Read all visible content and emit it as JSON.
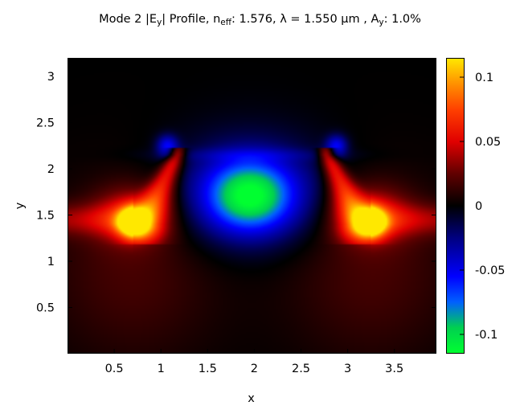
{
  "title": {
    "t1": "Mode 2 |E",
    "t2": "y",
    "t3": "| Profile, n",
    "t4": "eff",
    "t5": ": 1.576, λ = 1.550 µm , A",
    "t6": "y",
    "t7": ": 1.0%"
  },
  "chart_data": {
    "type": "heatmap",
    "title": "Mode 2 |Ey| Profile, neff: 1.576, λ = 1.550 µm , Ay: 1.0%",
    "xlabel": "x",
    "ylabel": "y",
    "xlim": [
      0,
      3.95
    ],
    "ylim": [
      0,
      3.2
    ],
    "x_ticks": [
      "0.5",
      "1",
      "1.5",
      "2",
      "2.5",
      "3",
      "3.5"
    ],
    "x_tick_values": [
      0.5,
      1,
      1.5,
      2,
      2.5,
      3,
      3.5
    ],
    "y_ticks": [
      "0.5",
      "1",
      "1.5",
      "2",
      "2.5",
      "3"
    ],
    "y_tick_values": [
      0.5,
      1,
      1.5,
      2,
      2.5,
      3
    ],
    "colorbar": {
      "range": [
        -0.115,
        0.115
      ],
      "ticks": [
        "0.1",
        "0.05",
        "0",
        "-0.05",
        "-0.1"
      ],
      "tick_values": [
        0.1,
        0.05,
        0,
        -0.05,
        -0.1
      ],
      "colormap": [
        {
          "v": -0.115,
          "color": "#00ff30"
        },
        {
          "v": -0.095,
          "color": "#00d050"
        },
        {
          "v": -0.075,
          "color": "#0060ff"
        },
        {
          "v": -0.055,
          "color": "#0000ff"
        },
        {
          "v": -0.025,
          "color": "#000080"
        },
        {
          "v": 0,
          "color": "#000000"
        },
        {
          "v": 0.025,
          "color": "#600000"
        },
        {
          "v": 0.05,
          "color": "#e00000"
        },
        {
          "v": 0.075,
          "color": "#ff4000"
        },
        {
          "v": 0.095,
          "color": "#ff9000"
        },
        {
          "v": 0.115,
          "color": "#ffe800"
        }
      ]
    },
    "field_features": [
      {
        "kind": "blue-center-lobe",
        "x": 1.95,
        "y": 1.7,
        "value": -0.09
      },
      {
        "kind": "red-left-lobe",
        "x": 0.7,
        "y": 1.45,
        "peak_value": 0.11
      },
      {
        "kind": "red-right-lobe",
        "x": 3.25,
        "y": 1.45,
        "peak_value": 0.11
      },
      {
        "kind": "blue-left-tip",
        "x": 1.05,
        "y": 2.25,
        "value": -0.05
      },
      {
        "kind": "blue-right-tip",
        "x": 2.85,
        "y": 2.25,
        "value": -0.05
      }
    ]
  }
}
